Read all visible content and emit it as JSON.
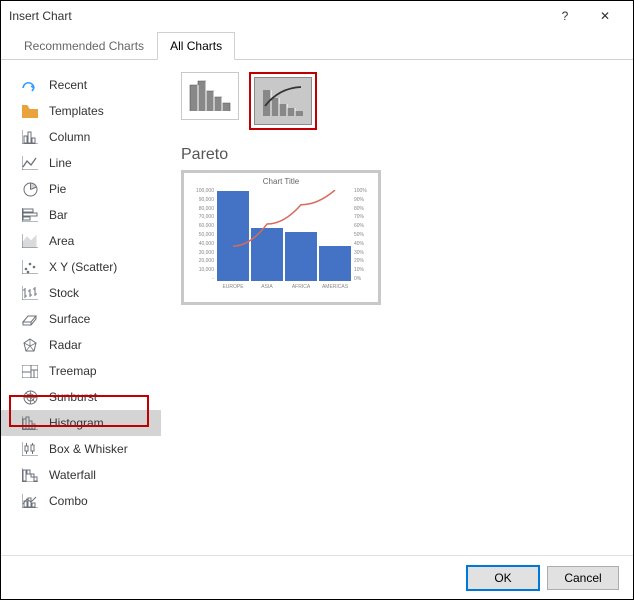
{
  "window": {
    "title": "Insert Chart",
    "help_glyph": "?",
    "close_glyph": "✕"
  },
  "tabs": {
    "recommended": "Recommended Charts",
    "all": "All Charts",
    "active": "all"
  },
  "sidebar": {
    "items": [
      {
        "id": "recent",
        "label": "Recent"
      },
      {
        "id": "templates",
        "label": "Templates"
      },
      {
        "id": "column",
        "label": "Column"
      },
      {
        "id": "line",
        "label": "Line"
      },
      {
        "id": "pie",
        "label": "Pie"
      },
      {
        "id": "bar",
        "label": "Bar"
      },
      {
        "id": "area",
        "label": "Area"
      },
      {
        "id": "scatter",
        "label": "X Y (Scatter)"
      },
      {
        "id": "stock",
        "label": "Stock"
      },
      {
        "id": "surface",
        "label": "Surface"
      },
      {
        "id": "radar",
        "label": "Radar"
      },
      {
        "id": "treemap",
        "label": "Treemap"
      },
      {
        "id": "sunburst",
        "label": "Sunburst"
      },
      {
        "id": "histogram",
        "label": "Histogram"
      },
      {
        "id": "boxwhisker",
        "label": "Box & Whisker"
      },
      {
        "id": "waterfall",
        "label": "Waterfall"
      },
      {
        "id": "combo",
        "label": "Combo"
      }
    ],
    "selected": "histogram",
    "highlight_box": "histogram"
  },
  "icon_color": "#6b7178",
  "recent_icon_color": "#3399ff",
  "templates_icon_color": "#e8a33d",
  "subtypes": {
    "selected_index": 1,
    "highlight_index": 1
  },
  "preview": {
    "type_label": "Pareto",
    "title": "Chart Title",
    "bars": {
      "type": "bar",
      "categories": [
        "EUROPE",
        "ASIA",
        "AFRICA",
        "AMERICAS"
      ],
      "values": [
        100000,
        60000,
        55000,
        40000
      ],
      "bar_color": "#4472c4",
      "ylim": [
        0,
        100000
      ],
      "ytick_step": 10000,
      "y_left_labels": [
        "100,000",
        "90,000",
        "80,000",
        "70,000",
        "60,000",
        "50,000",
        "40,000",
        "30,000",
        "20,000",
        "10,000",
        "-"
      ]
    },
    "line": {
      "type": "line",
      "color": "#d86b5c",
      "width": 1.5,
      "y_right_labels": [
        "100%",
        "90%",
        "80%",
        "70%",
        "60%",
        "50%",
        "40%",
        "30%",
        "20%",
        "10%",
        "0%"
      ],
      "points_pct": [
        39,
        63,
        84,
        100
      ]
    },
    "background_color": "#ffffff",
    "title_fontsize": 8,
    "axis_fontsize": 5,
    "axis_color": "#888888"
  },
  "buttons": {
    "ok": "OK",
    "cancel": "Cancel"
  }
}
